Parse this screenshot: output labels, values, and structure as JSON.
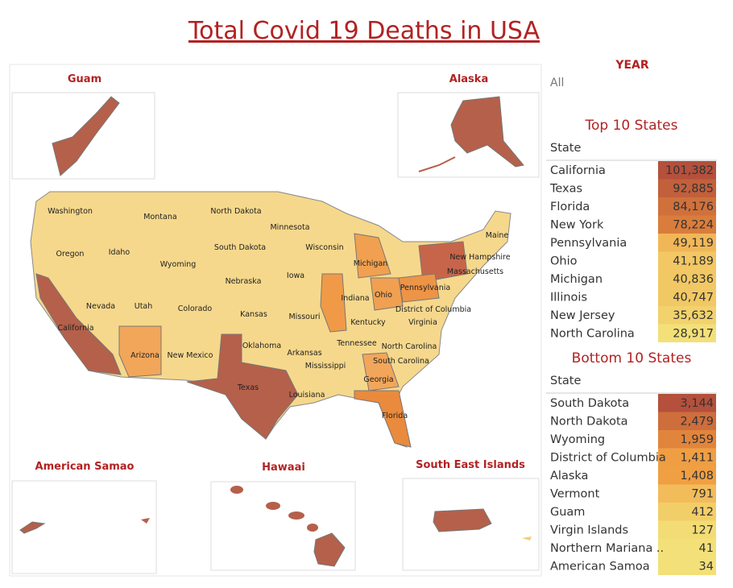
{
  "title": "Total Covid 19 Deaths in USA",
  "filter": {
    "label": "YEAR",
    "value": "All"
  },
  "map": {
    "insets": [
      "Guam",
      "Alaska",
      "American Samao",
      "Hawaai",
      "South East Islands"
    ],
    "state_labels": [
      "Washington",
      "Montana",
      "North Dakota",
      "Minnesota",
      "Oregon",
      "Idaho",
      "South Dakota",
      "Wisconsin",
      "Wyoming",
      "Michigan",
      "Maine",
      "New Hampshire",
      "Massachusetts",
      "Iowa",
      "Nebraska",
      "Pennsylvania",
      "Nevada",
      "Utah",
      "Colorado",
      "Indiana",
      "Ohio",
      "Kansas",
      "Missouri",
      "District of Columbia",
      "Kentucky",
      "Virginia",
      "California",
      "Tennessee",
      "North Carolina",
      "Oklahoma",
      "Arkansas",
      "Arizona",
      "New Mexico",
      "South Carolina",
      "Mississippi",
      "Georgia",
      "Texas",
      "Louisiana",
      "Florida"
    ]
  },
  "top10": {
    "title": "Top 10 States",
    "header": "State",
    "states": [
      "California",
      "Texas",
      "Florida",
      "New York",
      "Pennsylvania",
      "Ohio",
      "Michigan",
      "Illinois",
      "New Jersey",
      "North Carolina"
    ],
    "values": [
      101382,
      92885,
      84176,
      78224,
      49119,
      41189,
      40836,
      40747,
      35632,
      28917
    ],
    "value_labels": [
      "101,382",
      "92,885",
      "84,176",
      "78,224",
      "49,119",
      "41,189",
      "40,836",
      "40,747",
      "35,632",
      "28,917"
    ]
  },
  "bottom10": {
    "title": "Bottom 10 States",
    "header": "State",
    "states": [
      "South Dakota",
      "North Dakota",
      "Wyoming",
      "District of Columbia",
      "Alaska",
      "Vermont",
      "Guam",
      "Virgin Islands",
      "Northern Mariana ..",
      "American Samoa"
    ],
    "values": [
      3144,
      2479,
      1959,
      1411,
      1408,
      791,
      412,
      127,
      41,
      34
    ],
    "value_labels": [
      "3,144",
      "2,479",
      "1,959",
      "1,411",
      "1,408",
      "791",
      "412",
      "127",
      "41",
      "34"
    ]
  }
}
